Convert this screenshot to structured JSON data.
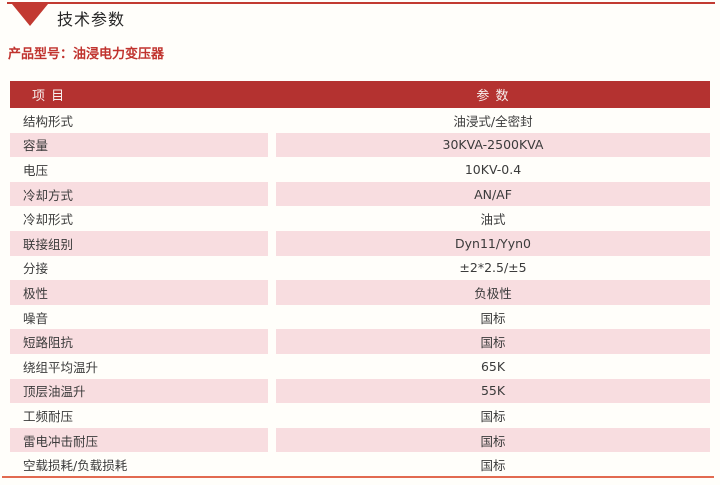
{
  "page": {
    "section_title": "技术参数",
    "product_model": "产品型号：油浸电力变压器"
  },
  "table": {
    "headers": [
      "项 目",
      "参 数"
    ],
    "rows": [
      {
        "item": "结构形式",
        "value": "油浸式/全密封"
      },
      {
        "item": "容量",
        "value": "30KVA-2500KVA"
      },
      {
        "item": "电压",
        "value": "10KV-0.4"
      },
      {
        "item": "冷却方式",
        "value": "AN/AF"
      },
      {
        "item": "冷却形式",
        "value": "油式"
      },
      {
        "item": "联接组别",
        "value": "Dyn11/Yyn0"
      },
      {
        "item": "分接",
        "value": "±2*2.5/±5"
      },
      {
        "item": "极性",
        "value": "负极性"
      },
      {
        "item": "噪音",
        "value": "国标"
      },
      {
        "item": "短路阻抗",
        "value": "国标"
      },
      {
        "item": "绕组平均温升",
        "value": "65K"
      },
      {
        "item": "顶层油温升",
        "value": "55K"
      },
      {
        "item": "工频耐压",
        "value": "国标"
      },
      {
        "item": "雷电冲击耐压",
        "value": "国标"
      },
      {
        "item": "空载损耗/负载损耗",
        "value": "国标"
      }
    ]
  },
  "colors": {
    "header_bg": "#b43230",
    "alt_row_bg": "#f8dde0",
    "accent_red": "#c23a31",
    "product_model_text": "#c0332e",
    "bottom_rule": "#e26a50"
  }
}
